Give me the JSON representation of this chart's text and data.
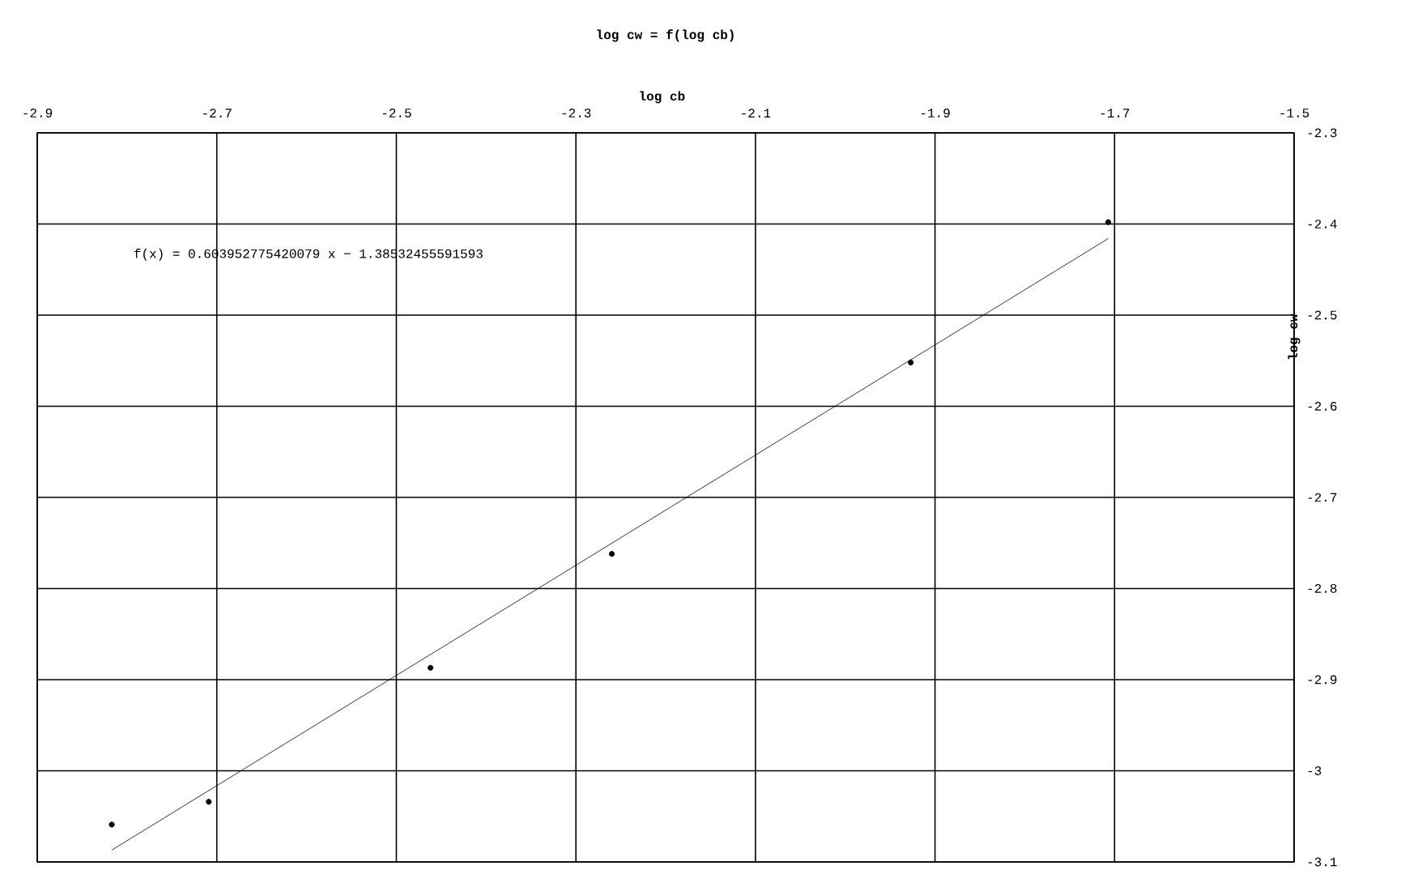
{
  "chart_data": {
    "type": "scatter",
    "title": "log cw = f(log cb)",
    "xlabel": "log cb",
    "ylabel": "log cw",
    "annotations": [
      "f(x) = 0.603952775420079 x − 1.38532455591593"
    ],
    "xlim": [
      -2.9,
      -1.5
    ],
    "xticks": [
      -2.9,
      -2.7,
      -2.5,
      -2.3,
      -2.1,
      -1.9,
      -1.7,
      -1.5
    ],
    "ylim": [
      -3.1,
      -2.3
    ],
    "yticks": [
      -3.1,
      -3,
      -2.9,
      -2.8,
      -2.7,
      -2.6,
      -2.5,
      -2.4,
      -2.3
    ],
    "grid": true,
    "series": [
      {
        "marker": "circle",
        "color": "#000000",
        "x": [
          -2.817,
          -2.709,
          -2.462,
          -2.26,
          -1.927,
          -1.707
        ],
        "values": [
          -3.059,
          -3.034,
          -2.887,
          -2.762,
          -2.552,
          -2.398
        ]
      },
      {
        "type": "line",
        "marker": "none",
        "color": "#000000",
        "x": [
          -2.817,
          -1.707
        ],
        "values": [
          -3.087,
          -2.416
        ]
      }
    ]
  }
}
